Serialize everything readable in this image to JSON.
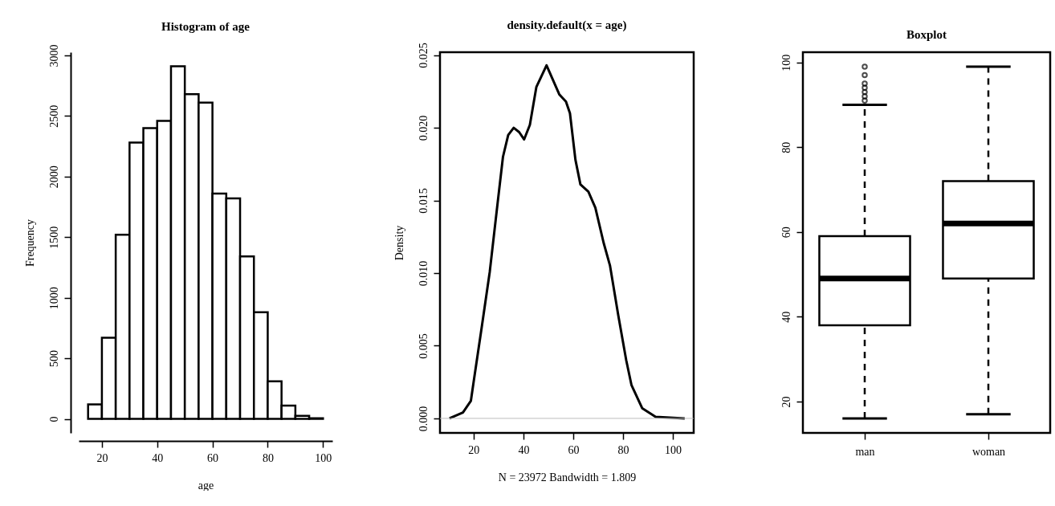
{
  "chart_data": [
    {
      "type": "histogram",
      "title": "Histogram of age",
      "xlabel": "age",
      "ylabel": "Frequency",
      "bins": [
        15,
        20,
        25,
        30,
        35,
        40,
        45,
        50,
        55,
        60,
        65,
        70,
        75,
        80,
        85,
        90,
        95,
        100
      ],
      "values": [
        120,
        670,
        1520,
        2280,
        2400,
        2460,
        2910,
        2680,
        2610,
        1860,
        1820,
        1340,
        880,
        310,
        110,
        25,
        5
      ],
      "color": "#000000",
      "xlim": [
        11.6,
        103.4
      ],
      "xticks": [
        20,
        40,
        60,
        80,
        100
      ],
      "ylim": [
        -116,
        3026
      ],
      "yticks": [
        0,
        500,
        1000,
        1500,
        2000,
        2500,
        3000
      ]
    },
    {
      "type": "line",
      "title": "density.default(x = age)",
      "xlabel": "N = 23972   Bandwidth = 1.809",
      "ylabel": "Density",
      "x": [
        10.3,
        15.7,
        18.9,
        20,
        23.2,
        26.5,
        29.7,
        31.8,
        33.9,
        36.1,
        38.3,
        40.3,
        42.6,
        45.2,
        49.3,
        54.4,
        57.1,
        58.7,
        60.9,
        62.9,
        66.1,
        68.9,
        72.2,
        74.8,
        78.1,
        81.3,
        83.4,
        87.7,
        93.1,
        104.8
      ],
      "series": [
        {
          "color": "#000000",
          "values": [
            0,
            0.0004,
            0.0012,
            0.0025,
            0.0062,
            0.0101,
            0.0149,
            0.018,
            0.0195,
            0.02,
            0.0197,
            0.0192,
            0.0202,
            0.0228,
            0.0243,
            0.0223,
            0.0218,
            0.021,
            0.0178,
            0.0161,
            0.0156,
            0.0145,
            0.0121,
            0.0105,
            0.0071,
            0.004,
            0.0023,
            0.0007,
            0.0001,
            0
          ]
        }
      ],
      "xlim": [
        6.5,
        108.4
      ],
      "xticks": [
        20,
        40,
        60,
        80,
        100
      ],
      "ylim": [
        -0.001,
        0.0252
      ],
      "yticks": [
        {
          "value": 0,
          "label": "0.000"
        },
        0.005,
        {
          "value": 0.01,
          "label": "0.010"
        },
        0.015,
        {
          "value": 0.02,
          "label": "0.020"
        },
        0.025
      ],
      "ref_lines": [
        {
          "axis": "y",
          "value": 0,
          "color": "#bebebe"
        }
      ]
    },
    {
      "type": "box",
      "title": "Boxplot",
      "categories": [
        "man",
        "woman"
      ],
      "boxes": [
        {
          "low": 16,
          "q1": 38,
          "median": 49,
          "q3": 59,
          "high": 90,
          "outliers": [
            91,
            92,
            93,
            94,
            95,
            97,
            99
          ]
        },
        {
          "low": 17,
          "q1": 49,
          "median": 62,
          "q3": 72,
          "high": 99
        }
      ],
      "color": "#000000",
      "ylim": [
        12.6,
        102.4
      ],
      "yticks": [
        20,
        40,
        60,
        80,
        100
      ]
    }
  ]
}
